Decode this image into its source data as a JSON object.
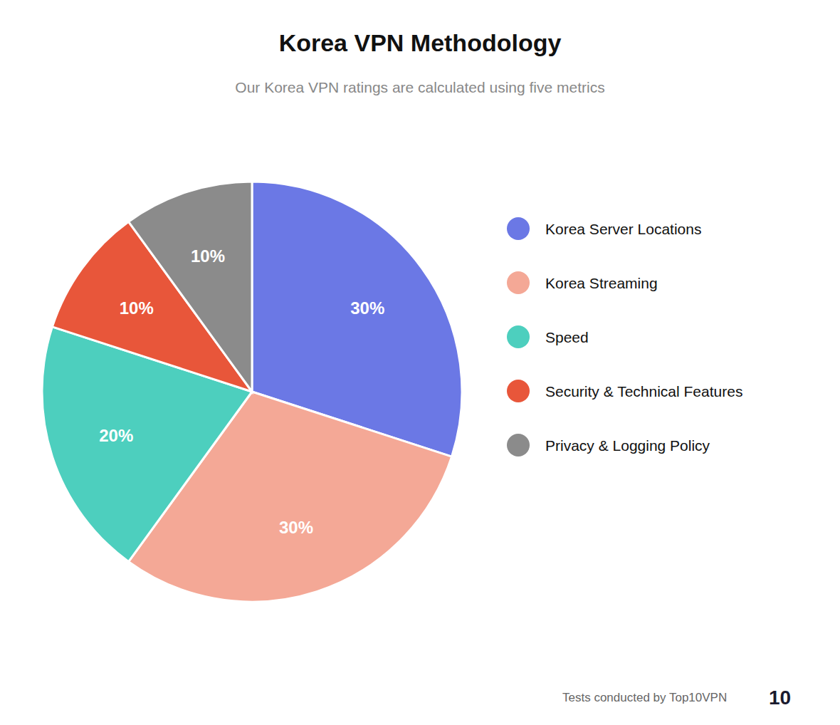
{
  "chart_data": {
    "type": "pie",
    "title": "Korea VPN Methodology",
    "subtitle": "Our Korea VPN ratings are calculated using five metrics",
    "categories": [
      "Korea Server Locations",
      "Korea Streaming",
      "Speed",
      "Security & Technical Features",
      "Privacy & Logging Policy"
    ],
    "values": [
      30,
      30,
      20,
      10,
      10
    ],
    "value_labels": [
      "30%",
      "30%",
      "20%",
      "10%",
      "10%"
    ],
    "colors": [
      "#6B78E5",
      "#F4A896",
      "#4DCFBE",
      "#E8563A",
      "#8B8B8B"
    ],
    "data_labels": true,
    "legend": "right",
    "annotations": [
      "Tests conducted by Top10VPN",
      "10"
    ]
  }
}
